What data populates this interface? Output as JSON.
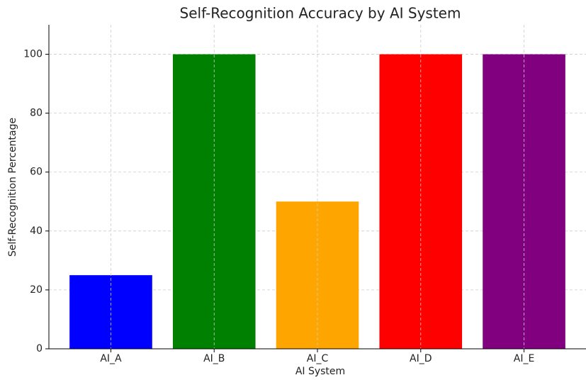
{
  "chart_data": {
    "type": "bar",
    "title": "Self-Recognition Accuracy by AI System",
    "x_label": "AI System",
    "y_label": "Self-Recognition Percentage",
    "categories": [
      "AI_A",
      "AI_B",
      "AI_C",
      "AI_D",
      "AI_E"
    ],
    "values": [
      25,
      100,
      50,
      100,
      100
    ],
    "colors": [
      "#0000ff",
      "#008000",
      "#ffa500",
      "#ff0000",
      "#800080"
    ],
    "ylim": [
      0,
      110
    ],
    "yticks": [
      0,
      20,
      40,
      60,
      80,
      100
    ],
    "grid": true
  }
}
